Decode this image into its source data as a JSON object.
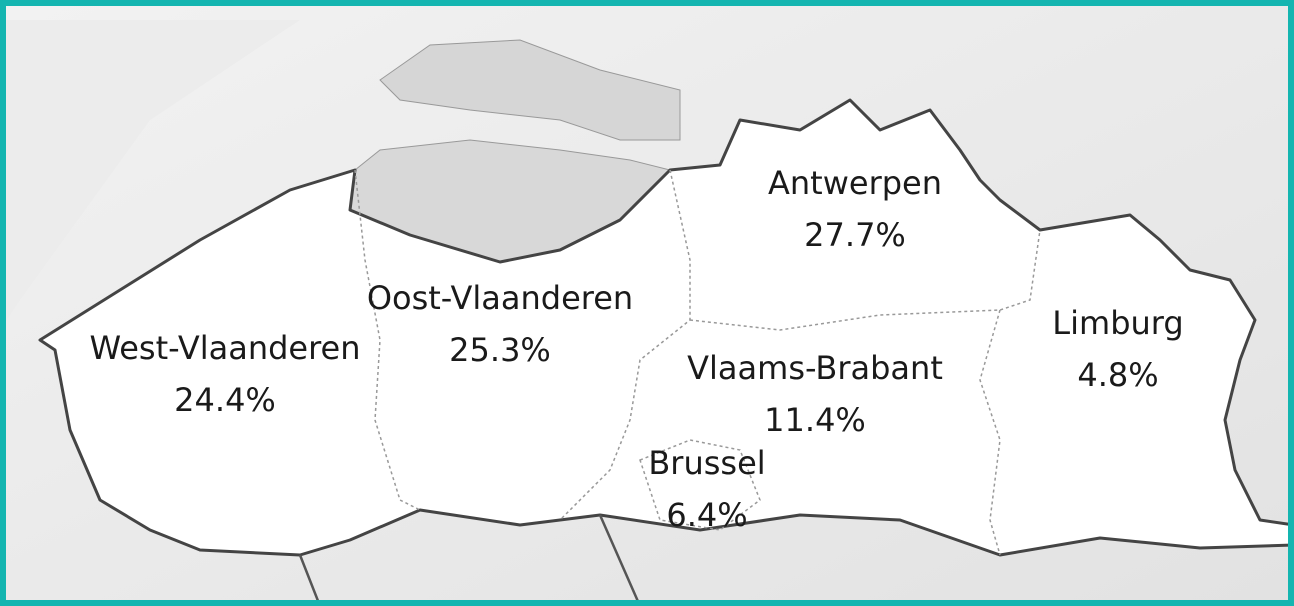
{
  "regions": [
    {
      "name": "Antwerpen",
      "share": "27.7%"
    },
    {
      "name": "Oost-Vlaanderen",
      "share": "25.3%"
    },
    {
      "name": "West-Vlaanderen",
      "share": "24.4%"
    },
    {
      "name": "Vlaams-Brabant",
      "share": "11.4%"
    },
    {
      "name": "Limburg",
      "share": "4.8%"
    },
    {
      "name": "Brussel",
      "share": "6.4%"
    }
  ]
}
